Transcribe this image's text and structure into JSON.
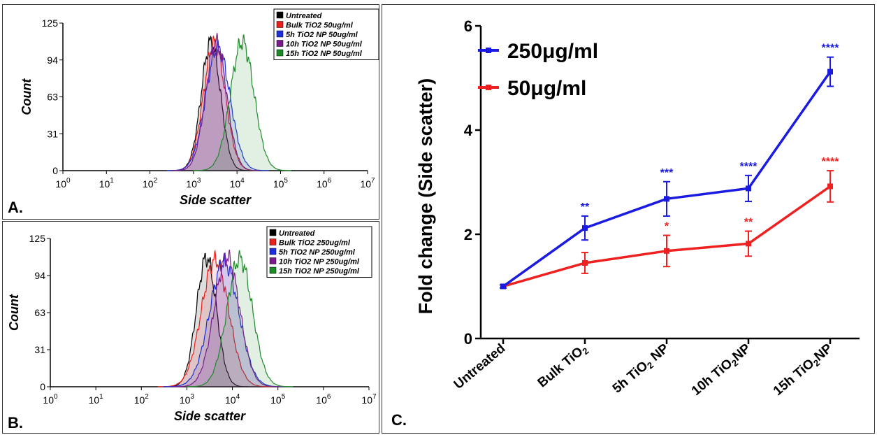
{
  "panels": {
    "a": {
      "letter": "A."
    },
    "b": {
      "letter": "B."
    },
    "c": {
      "letter": "C."
    }
  },
  "chart_data": [
    {
      "type": "area",
      "panel": "A",
      "xlabel": "Side scatter",
      "ylabel": "Count",
      "xscale": "log",
      "xlim": [
        1,
        10000000
      ],
      "ylim": [
        0,
        125
      ],
      "x_ticks": [
        {
          "b": "10",
          "e": "0"
        },
        {
          "b": "10",
          "e": "1"
        },
        {
          "b": "10",
          "e": "2"
        },
        {
          "b": "10",
          "e": "3"
        },
        {
          "b": "10",
          "e": "4"
        },
        {
          "b": "10",
          "e": "5"
        },
        {
          "b": "10",
          "e": "6"
        },
        {
          "b": "10",
          "e": "7"
        }
      ],
      "y_ticks": [
        "0",
        "31",
        "63",
        "94",
        "125"
      ],
      "legend_position": "top-right",
      "series": [
        {
          "name": "Untreated",
          "color": "#000000",
          "peak_log10": 3.4,
          "sigma": 0.22,
          "height": 109
        },
        {
          "name": "Bulk TiO2 50ug/ml",
          "color": "#e8201c",
          "peak_log10": 3.48,
          "sigma": 0.25,
          "height": 108
        },
        {
          "name": "5h TiO2 NP 50ug/ml",
          "color": "#1f2fd8",
          "peak_log10": 3.56,
          "sigma": 0.28,
          "height": 104
        },
        {
          "name": "10h TiO2 NP 50ug/ml",
          "color": "#7a1a8c",
          "peak_log10": 3.52,
          "sigma": 0.24,
          "height": 109
        },
        {
          "name": "15h TiO2 NP 50ug/ml",
          "color": "#1f8a2a",
          "peak_log10": 4.12,
          "sigma": 0.27,
          "height": 109
        }
      ]
    },
    {
      "type": "area",
      "panel": "B",
      "xlabel": "Side scatter",
      "ylabel": "Count",
      "xscale": "log",
      "xlim": [
        1,
        10000000
      ],
      "ylim": [
        0,
        125
      ],
      "x_ticks": [
        {
          "b": "10",
          "e": "0"
        },
        {
          "b": "10",
          "e": "1"
        },
        {
          "b": "10",
          "e": "2"
        },
        {
          "b": "10",
          "e": "3"
        },
        {
          "b": "10",
          "e": "4"
        },
        {
          "b": "10",
          "e": "5"
        },
        {
          "b": "10",
          "e": "6"
        },
        {
          "b": "10",
          "e": "7"
        }
      ],
      "y_ticks": [
        "0",
        "31",
        "63",
        "94",
        "125"
      ],
      "legend_position": "top-right",
      "series": [
        {
          "name": "Untreated",
          "color": "#000000",
          "peak_log10": 3.43,
          "sigma": 0.22,
          "height": 109
        },
        {
          "name": "Bulk TiO2 250ug/ml",
          "color": "#e8201c",
          "peak_log10": 3.62,
          "sigma": 0.3,
          "height": 107
        },
        {
          "name": "5h TiO2 NP 250ug/ml",
          "color": "#1f2fd8",
          "peak_log10": 3.82,
          "sigma": 0.32,
          "height": 105
        },
        {
          "name": "10h TiO2 NP 250ug/ml",
          "color": "#7a1a8c",
          "peak_log10": 3.88,
          "sigma": 0.28,
          "height": 109
        },
        {
          "name": "15h TiO2 NP 250ug/ml",
          "color": "#1f8a2a",
          "peak_log10": 4.16,
          "sigma": 0.28,
          "height": 108
        }
      ]
    },
    {
      "type": "line",
      "panel": "C",
      "ylabel": "Fold change (Side scatter)",
      "ylim": [
        0,
        6
      ],
      "y_ticks": [
        "0",
        "2",
        "4",
        "6"
      ],
      "categories": [
        {
          "main": "Untreated",
          "sub": "",
          "tail": ""
        },
        {
          "main": "Bulk TiO",
          "sub": "2",
          "tail": ""
        },
        {
          "main": "5h TiO",
          "sub": "2",
          "tail": " NP"
        },
        {
          "main": "10h TiO",
          "sub": "2",
          "tail": "NP"
        },
        {
          "main": "15h TiO",
          "sub": "2",
          "tail": "NP"
        }
      ],
      "legend_position": "top-left",
      "series": [
        {
          "name": "250μg/ml",
          "color": "#1a1ae0",
          "values": [
            1.0,
            2.12,
            2.68,
            2.88,
            5.12
          ],
          "errors": [
            0.03,
            0.23,
            0.33,
            0.25,
            0.28
          ],
          "significance": [
            "",
            "**",
            "***",
            "****",
            "****"
          ]
        },
        {
          "name": "50μg/ml",
          "color": "#ee2020",
          "values": [
            1.0,
            1.45,
            1.68,
            1.82,
            2.92
          ],
          "errors": [
            0.03,
            0.2,
            0.3,
            0.24,
            0.3
          ],
          "significance": [
            "",
            "",
            "*",
            "**",
            "****"
          ]
        }
      ]
    }
  ]
}
